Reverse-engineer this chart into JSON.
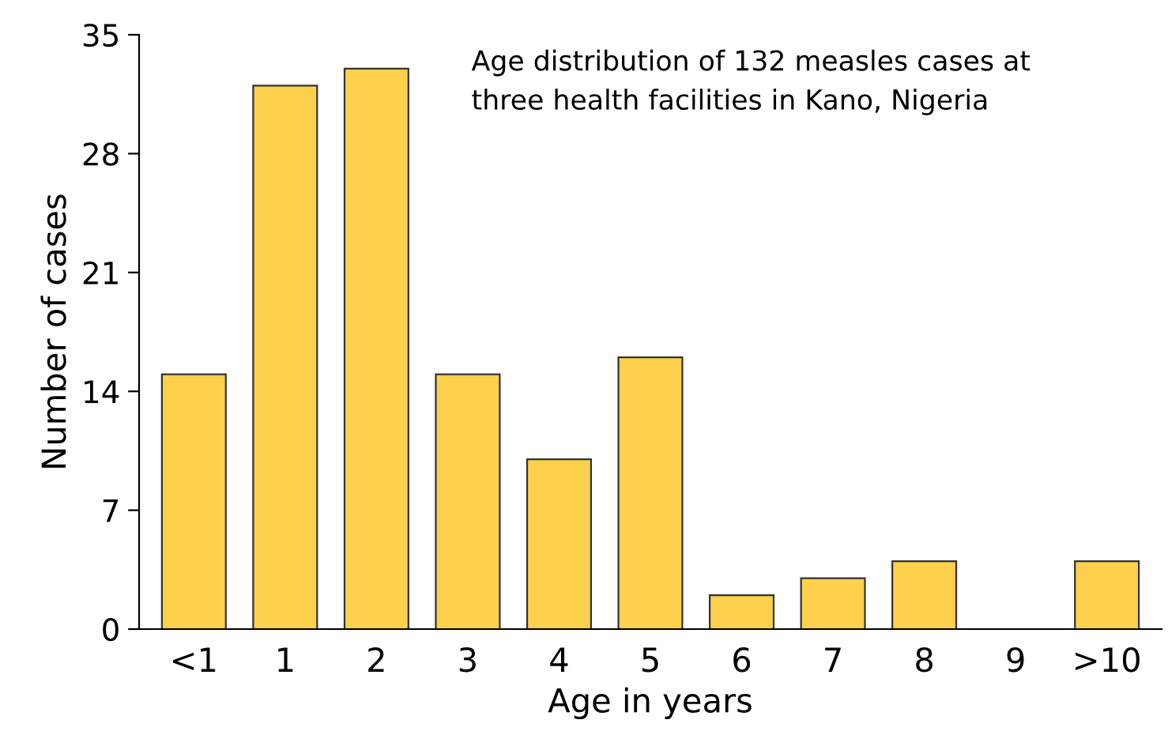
{
  "chart_data": {
    "type": "bar",
    "title": "Age distribution of 132 measles cases at\nthree health facilities in Kano, Nigeria",
    "xlabel": "Age in years",
    "ylabel": "Number of cases",
    "categories": [
      "<1",
      "1",
      "2",
      "3",
      "4",
      "5",
      "6",
      "7",
      "8",
      "9",
      ">10"
    ],
    "values": [
      15,
      32,
      33,
      15,
      10,
      16,
      2,
      3,
      4,
      0,
      4
    ],
    "color": "#fdd14b",
    "ylim": [
      0,
      35
    ],
    "yticks": [
      0,
      7,
      14,
      21,
      28,
      35
    ],
    "grid": false
  }
}
